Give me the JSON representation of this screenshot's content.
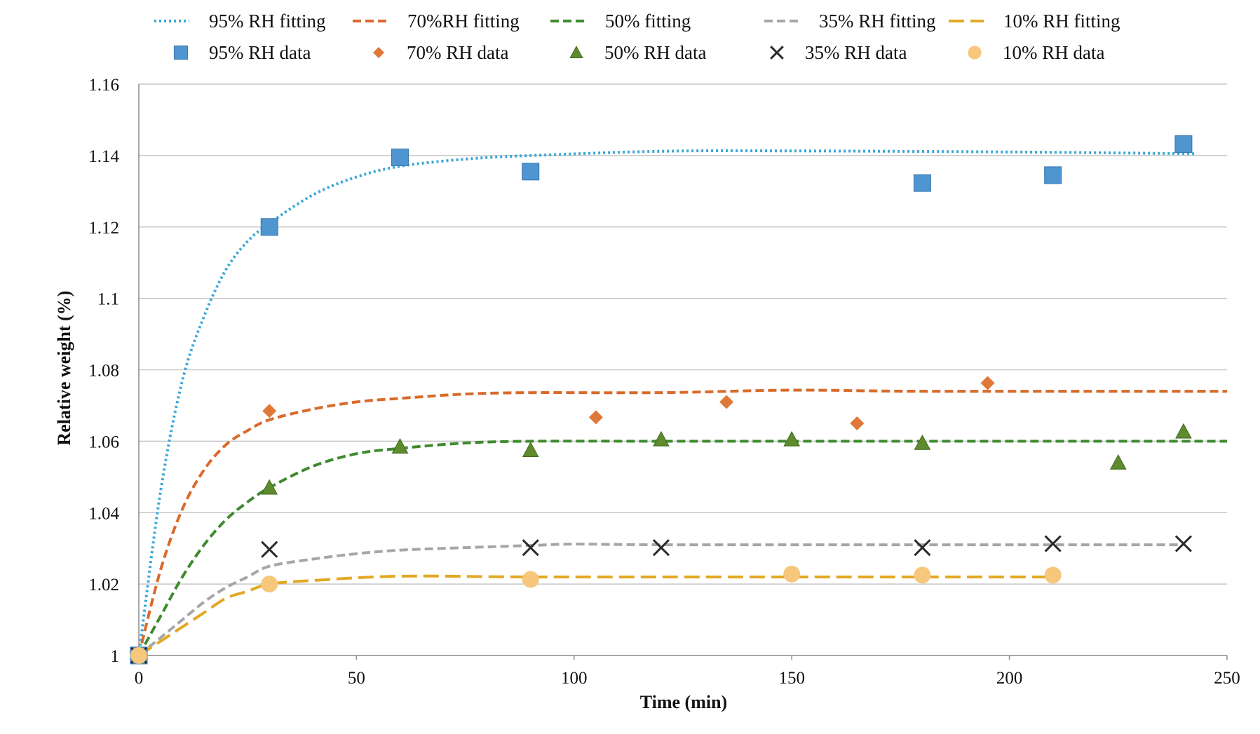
{
  "chart_data": {
    "type": "scatter",
    "xlabel": "Time (min)",
    "ylabel": "Relative weight (%)",
    "xlim": [
      0,
      250
    ],
    "ylim": [
      1,
      1.16
    ],
    "x_ticks": [
      0,
      50,
      100,
      150,
      200,
      250
    ],
    "y_ticks": [
      1,
      1.02,
      1.04,
      1.06,
      1.08,
      1.1,
      1.12,
      1.14,
      1.16
    ],
    "x_tick_labels": [
      "0",
      "50",
      "100",
      "150",
      "200",
      "250"
    ],
    "y_tick_labels": [
      "1",
      "1.02",
      "1.04",
      "1.06",
      "1.08",
      "1.1",
      "1.12",
      "1.14",
      "1.16"
    ],
    "grid": "horizontal",
    "legend_position": "top",
    "fitting_series": [
      {
        "name": "95% RH fitting",
        "color": "#3aa7d6",
        "dash": "dotted",
        "x": [
          0,
          5,
          10,
          15,
          20,
          25,
          30,
          40,
          50,
          60,
          75,
          90,
          120,
          150,
          200,
          243
        ],
        "y": [
          1.0,
          1.046,
          1.077,
          1.095,
          1.108,
          1.116,
          1.121,
          1.129,
          1.134,
          1.137,
          1.139,
          1.14,
          1.1412,
          1.1413,
          1.141,
          1.1405
        ]
      },
      {
        "name": "70%RH fitting",
        "color": "#d96a2b",
        "dash": "dashed",
        "x": [
          0,
          5,
          10,
          15,
          20,
          25,
          30,
          40,
          50,
          60,
          75,
          90,
          120,
          150,
          180,
          250
        ],
        "y": [
          1.0,
          1.024,
          1.041,
          1.052,
          1.059,
          1.063,
          1.066,
          1.069,
          1.071,
          1.072,
          1.0732,
          1.0736,
          1.0736,
          1.0743,
          1.074,
          1.074
        ]
      },
      {
        "name": "50% fitting",
        "color": "#3f8a2f",
        "dash": "dashed",
        "x": [
          0,
          5,
          10,
          15,
          20,
          25,
          30,
          40,
          50,
          60,
          75,
          90,
          120,
          180,
          250
        ],
        "y": [
          1.0,
          1.011,
          1.022,
          1.031,
          1.038,
          1.043,
          1.047,
          1.053,
          1.0565,
          1.058,
          1.0595,
          1.06,
          1.06,
          1.06,
          1.06
        ]
      },
      {
        "name": "35% RH fitting",
        "color": "#a6a6a6",
        "dash": "dashed",
        "x": [
          0,
          5,
          10,
          15,
          20,
          25,
          30,
          40,
          50,
          60,
          75,
          90,
          100,
          120,
          180,
          240
        ],
        "y": [
          1.0,
          1.005,
          1.01,
          1.015,
          1.019,
          1.022,
          1.025,
          1.027,
          1.0285,
          1.0295,
          1.0302,
          1.0308,
          1.0312,
          1.031,
          1.031,
          1.031
        ]
      },
      {
        "name": "10% RH fitting",
        "color": "#e3a823",
        "dash": "longdash",
        "x": [
          0,
          5,
          10,
          15,
          20,
          25,
          30,
          40,
          60,
          90,
          150,
          210
        ],
        "y": [
          1.0,
          1.004,
          1.008,
          1.012,
          1.016,
          1.018,
          1.02,
          1.021,
          1.0222,
          1.022,
          1.022,
          1.022
        ]
      }
    ],
    "data_series": [
      {
        "name": "95% RH data",
        "color": "#4f95d0",
        "marker": "square",
        "x": [
          0,
          30,
          60,
          90,
          180,
          210,
          240
        ],
        "y": [
          1.0,
          1.12,
          1.1395,
          1.1355,
          1.1323,
          1.1345,
          1.1432
        ]
      },
      {
        "name": "70% RH data",
        "color": "#e0783a",
        "marker": "diamond",
        "x": [
          0,
          30,
          105,
          135,
          165,
          195
        ],
        "y": [
          1.0,
          1.0685,
          1.0667,
          1.071,
          1.065,
          1.0763
        ]
      },
      {
        "name": "50% RH data",
        "color": "#5f8a2e",
        "marker": "triangle",
        "x": [
          0,
          30,
          60,
          90,
          120,
          150,
          180,
          225,
          240
        ],
        "y": [
          1.0,
          1.047,
          1.0585,
          1.0575,
          1.0605,
          1.0605,
          1.0595,
          1.054,
          1.0627
        ]
      },
      {
        "name": "35% RH data",
        "color": "#2b2b2b",
        "marker": "cross",
        "x": [
          0,
          30,
          90,
          120,
          180,
          210,
          240
        ],
        "y": [
          1.0,
          1.0297,
          1.0302,
          1.0302,
          1.0302,
          1.0313,
          1.0313
        ]
      },
      {
        "name": "10% RH data",
        "color": "#f7c77c",
        "marker": "circle",
        "x": [
          0,
          30,
          90,
          150,
          180,
          210
        ],
        "y": [
          1.0,
          1.02,
          1.0213,
          1.0228,
          1.0225,
          1.0225
        ]
      }
    ]
  }
}
